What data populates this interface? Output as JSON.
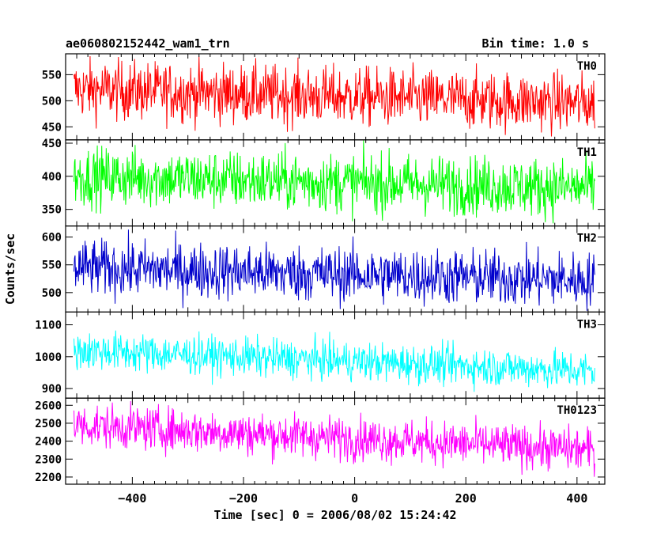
{
  "header": {
    "title": "ae060802152442_wam1_trn",
    "bin_time": "Bin time: 1.0 s"
  },
  "chart_data": {
    "type": "line",
    "x_axis": {
      "label": "Time [sec] 0 = 2006/08/02 15:24:42",
      "range": [
        -520,
        450
      ],
      "ticks": [
        -400,
        -200,
        0,
        200,
        400
      ],
      "data_range": [
        -505,
        432
      ]
    },
    "y_axis_label": "Counts/sec",
    "panels": [
      {
        "name": "TH0",
        "color": "#ff0000",
        "ylim": [
          425,
          590
        ],
        "yticks": [
          450,
          500,
          550
        ],
        "mean_start": 522,
        "mean_end": 495,
        "noise": 28
      },
      {
        "name": "TH1",
        "color": "#00ff00",
        "ylim": [
          325,
          455
        ],
        "yticks": [
          350,
          400,
          450
        ],
        "mean_start": 400,
        "mean_end": 382,
        "noise": 22
      },
      {
        "name": "TH2",
        "color": "#0000cc",
        "ylim": [
          465,
          620
        ],
        "yticks": [
          500,
          550,
          600
        ],
        "mean_start": 545,
        "mean_end": 522,
        "noise": 25
      },
      {
        "name": "TH3",
        "color": "#00ffff",
        "ylim": [
          870,
          1140
        ],
        "yticks": [
          900,
          1000,
          1100
        ],
        "mean_start": 1020,
        "mean_end": 955,
        "noise": 30
      },
      {
        "name": "TH0123",
        "color": "#ff00ff",
        "ylim": [
          2160,
          2640
        ],
        "yticks": [
          2200,
          2300,
          2400,
          2500,
          2600
        ],
        "mean_start": 2490,
        "mean_end": 2350,
        "noise": 60
      }
    ]
  }
}
